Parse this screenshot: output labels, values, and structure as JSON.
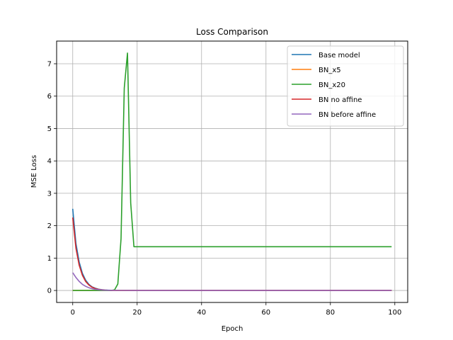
{
  "chart_data": {
    "type": "line",
    "title": "Loss Comparison",
    "xlabel": "Epoch",
    "ylabel": "MSE Loss",
    "xlim": [
      -5,
      104
    ],
    "ylim": [
      -0.37,
      7.7
    ],
    "xticks": [
      0,
      20,
      40,
      60,
      80,
      100
    ],
    "yticks": [
      0,
      1,
      2,
      3,
      4,
      5,
      6,
      7
    ],
    "grid": true,
    "legend_position": "top-right",
    "series": [
      {
        "name": "Base model",
        "color": "#1f77b4",
        "points": [
          [
            0,
            2.52
          ],
          [
            1,
            1.45
          ],
          [
            2,
            0.88
          ],
          [
            3,
            0.53
          ],
          [
            4,
            0.32
          ],
          [
            5,
            0.19
          ],
          [
            6,
            0.11
          ],
          [
            7,
            0.07
          ],
          [
            8,
            0.04
          ],
          [
            9,
            0.025
          ],
          [
            10,
            0.015
          ],
          [
            11,
            0.01
          ],
          [
            12,
            0.006
          ],
          [
            13,
            0.004
          ],
          [
            14,
            0.003
          ],
          [
            15,
            0.002
          ],
          [
            20,
            0.001
          ],
          [
            30,
            0.001
          ],
          [
            50,
            0.001
          ],
          [
            70,
            0.001
          ],
          [
            99,
            0.001
          ]
        ]
      },
      {
        "name": "BN_x5",
        "color": "#ff7f0e",
        "points": [
          [
            0,
            0.0
          ],
          [
            5,
            0.0
          ],
          [
            10,
            0.0
          ],
          [
            20,
            0.0
          ],
          [
            40,
            0.0
          ],
          [
            60,
            0.0
          ],
          [
            80,
            0.0
          ],
          [
            99,
            0.0
          ]
        ]
      },
      {
        "name": "BN_x20",
        "color": "#2ca02c",
        "points": [
          [
            0,
            0.0
          ],
          [
            12,
            0.0
          ],
          [
            13,
            0.02
          ],
          [
            14,
            0.2
          ],
          [
            15,
            1.6
          ],
          [
            16,
            6.25
          ],
          [
            17,
            7.33
          ],
          [
            18,
            2.7
          ],
          [
            19,
            1.35
          ],
          [
            20,
            1.35
          ],
          [
            40,
            1.35
          ],
          [
            60,
            1.35
          ],
          [
            80,
            1.35
          ],
          [
            99,
            1.35
          ]
        ]
      },
      {
        "name": "BN no affine",
        "color": "#d62728",
        "points": [
          [
            0,
            2.25
          ],
          [
            1,
            1.3
          ],
          [
            2,
            0.78
          ],
          [
            3,
            0.47
          ],
          [
            4,
            0.28
          ],
          [
            5,
            0.17
          ],
          [
            6,
            0.1
          ],
          [
            7,
            0.06
          ],
          [
            8,
            0.035
          ],
          [
            9,
            0.02
          ],
          [
            10,
            0.012
          ],
          [
            11,
            0.007
          ],
          [
            12,
            0.004
          ],
          [
            13,
            0.003
          ],
          [
            15,
            0.002
          ],
          [
            20,
            0.001
          ],
          [
            40,
            0.001
          ],
          [
            60,
            0.001
          ],
          [
            80,
            0.001
          ],
          [
            99,
            0.001
          ]
        ]
      },
      {
        "name": "BN before affine",
        "color": "#9467bd",
        "points": [
          [
            0,
            0.55
          ],
          [
            1,
            0.4
          ],
          [
            2,
            0.28
          ],
          [
            3,
            0.19
          ],
          [
            4,
            0.13
          ],
          [
            5,
            0.085
          ],
          [
            6,
            0.055
          ],
          [
            7,
            0.035
          ],
          [
            8,
            0.022
          ],
          [
            9,
            0.014
          ],
          [
            10,
            0.009
          ],
          [
            12,
            0.004
          ],
          [
            15,
            0.002
          ],
          [
            20,
            0.001
          ],
          [
            40,
            0.001
          ],
          [
            60,
            0.001
          ],
          [
            80,
            0.001
          ],
          [
            99,
            0.001
          ]
        ]
      }
    ]
  }
}
